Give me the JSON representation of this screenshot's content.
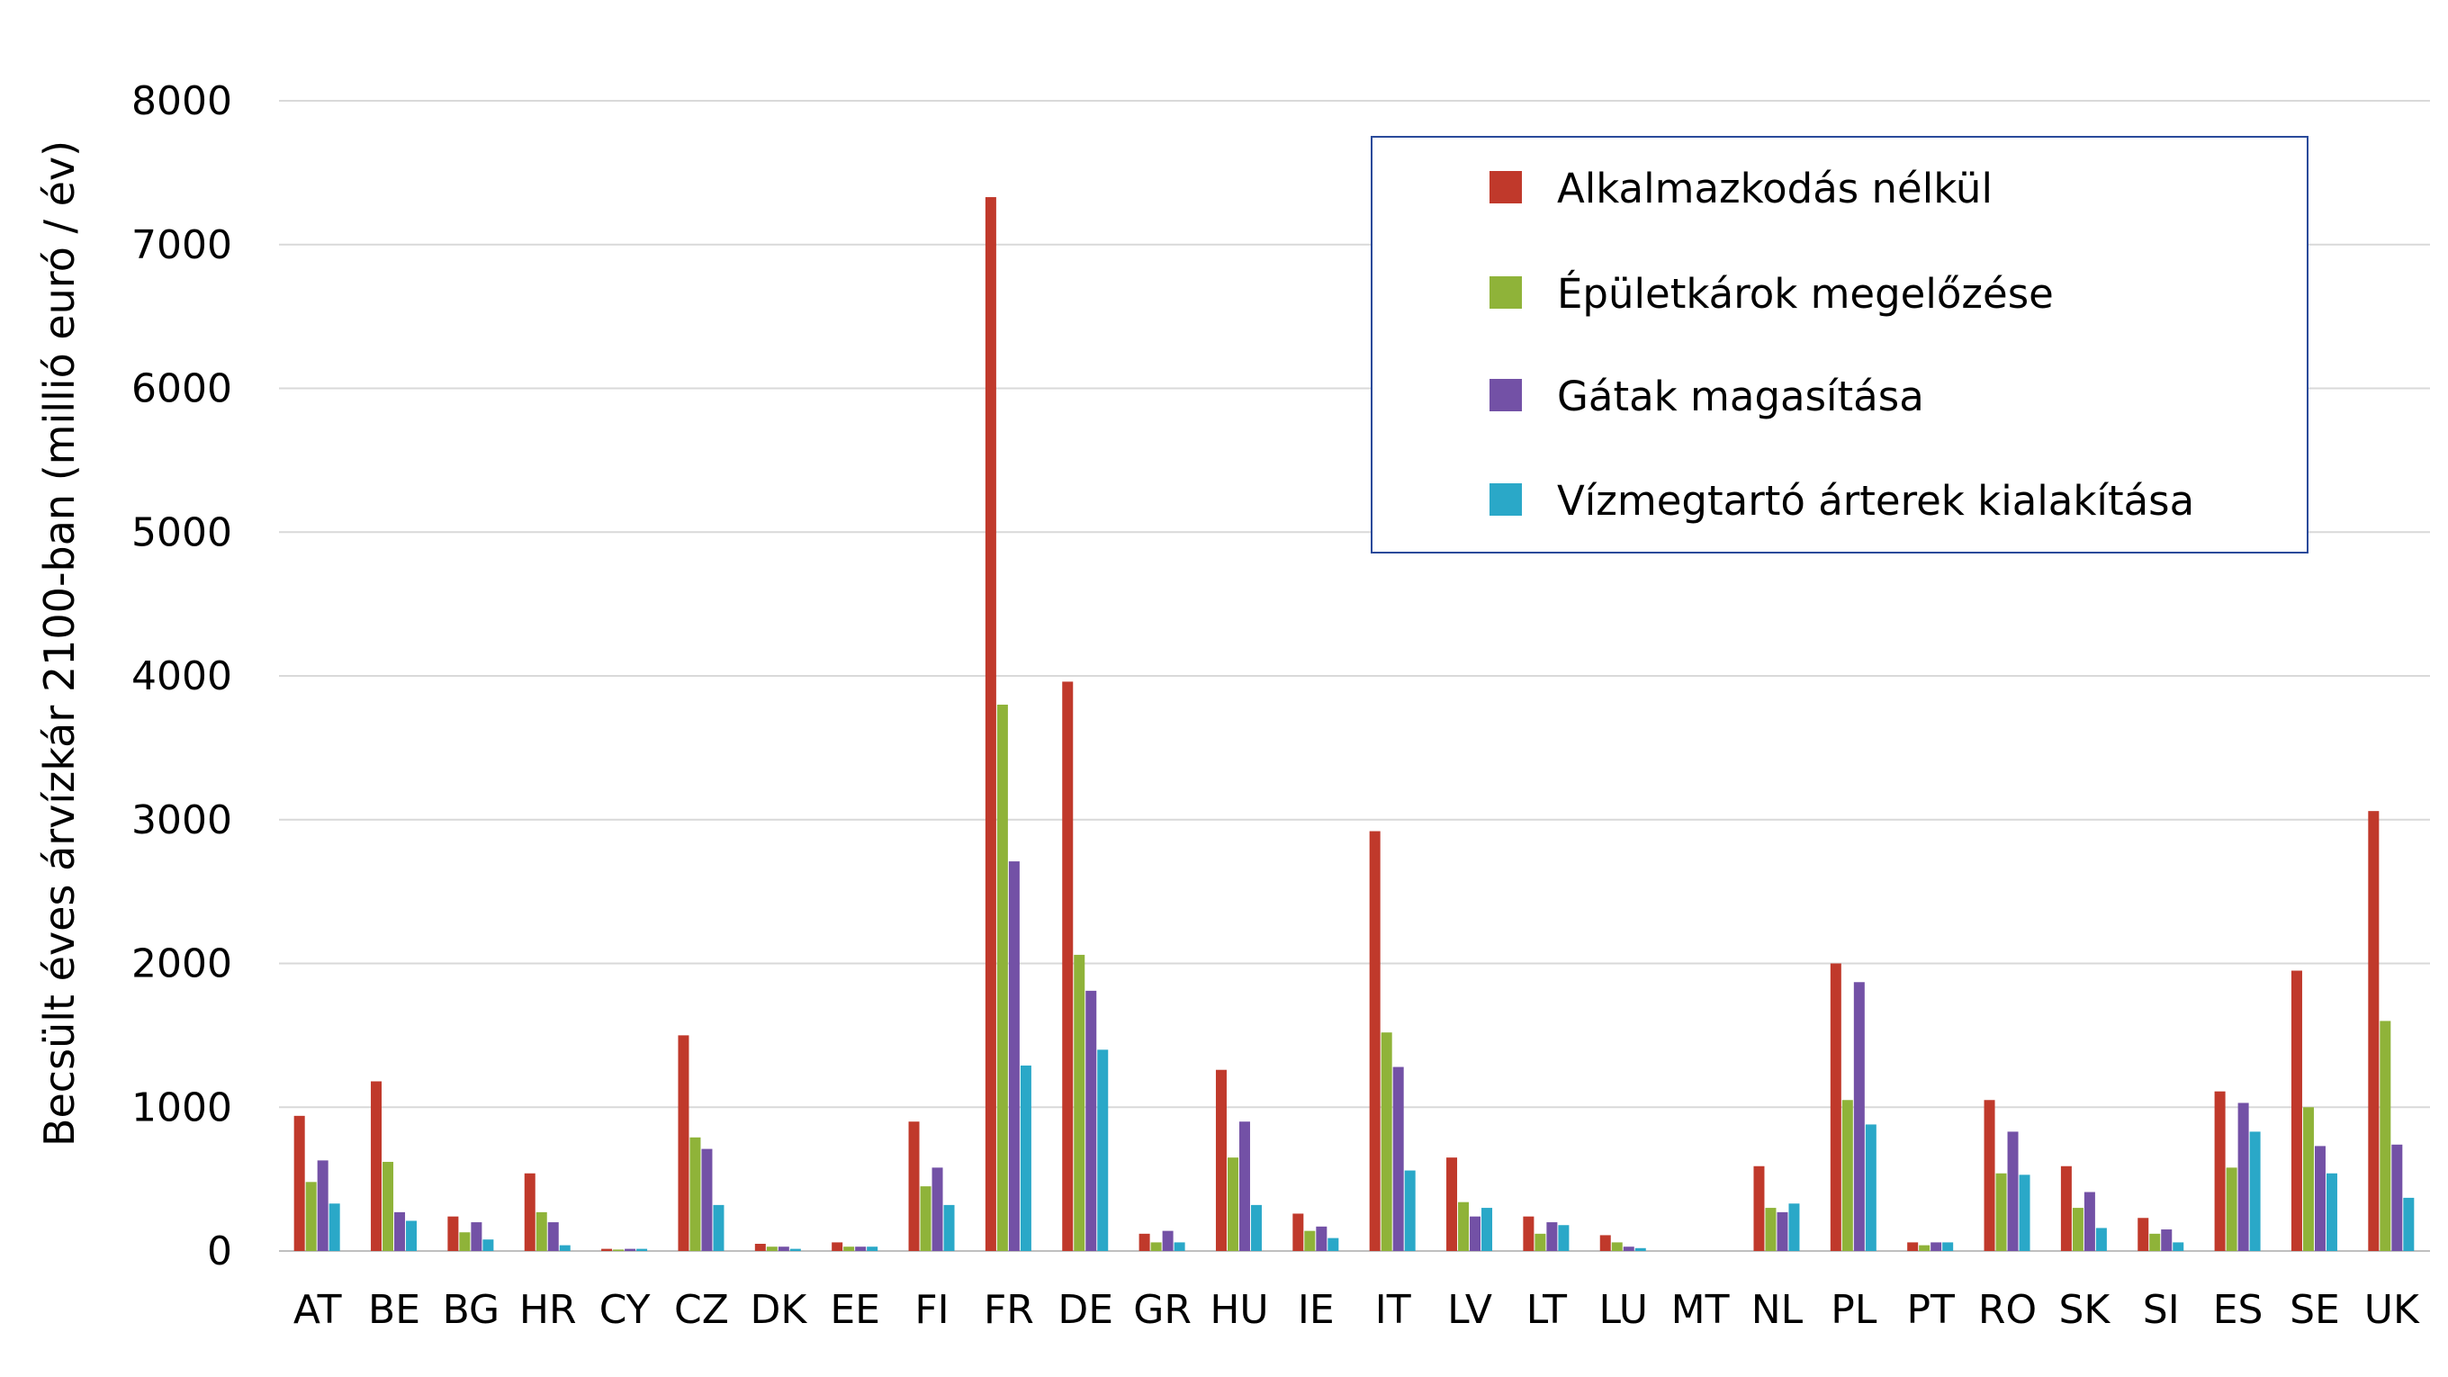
{
  "chart_data": {
    "type": "bar",
    "ylabel": "Becsült éves árvízkár 2100-ban (millió euró / év)",
    "ylim": [
      0,
      8000
    ],
    "yticks": [
      0,
      1000,
      2000,
      3000,
      4000,
      5000,
      6000,
      7000,
      8000
    ],
    "grid": true,
    "legend_position": "top-right",
    "categories": [
      "AT",
      "BE",
      "BG",
      "HR",
      "CY",
      "CZ",
      "DK",
      "EE",
      "FI",
      "FR",
      "DE",
      "GR",
      "HU",
      "IE",
      "IT",
      "LV",
      "LT",
      "LU",
      "MT",
      "NL",
      "PL",
      "PT",
      "RO",
      "SK",
      "SI",
      "ES",
      "SE",
      "UK"
    ],
    "series": [
      {
        "name": "Alkalmazkodás nélkül",
        "color": "#c0392b",
        "values": [
          940,
          1180,
          240,
          540,
          15,
          1500,
          50,
          60,
          900,
          7330,
          3960,
          120,
          1260,
          260,
          2920,
          650,
          240,
          110,
          0,
          590,
          2000,
          60,
          1050,
          590,
          230,
          1110,
          1950,
          3060
        ]
      },
      {
        "name": "Épületkárok megelőzése",
        "color": "#8fb339",
        "values": [
          480,
          620,
          130,
          270,
          10,
          790,
          30,
          30,
          450,
          3800,
          2060,
          60,
          650,
          140,
          1520,
          340,
          120,
          60,
          0,
          300,
          1050,
          40,
          540,
          300,
          120,
          580,
          1000,
          1600
        ]
      },
      {
        "name": "Gátak magasítása",
        "color": "#7351a6",
        "values": [
          630,
          270,
          200,
          200,
          15,
          710,
          30,
          30,
          580,
          2710,
          1810,
          140,
          900,
          170,
          1280,
          240,
          200,
          30,
          0,
          270,
          1870,
          60,
          830,
          410,
          150,
          1030,
          730,
          740
        ]
      },
      {
        "name": "Vízmegtartó árterek kialakítása",
        "color": "#2aa8c8",
        "values": [
          330,
          210,
          80,
          40,
          15,
          320,
          15,
          30,
          320,
          1290,
          1400,
          60,
          320,
          90,
          560,
          300,
          180,
          20,
          0,
          330,
          880,
          60,
          530,
          160,
          60,
          830,
          540,
          370
        ]
      }
    ]
  }
}
